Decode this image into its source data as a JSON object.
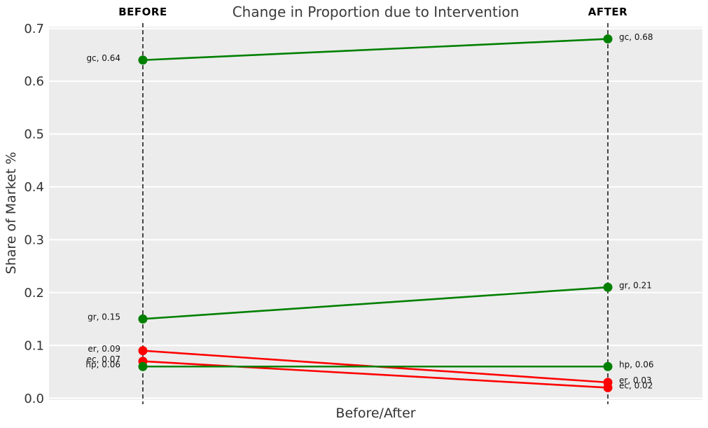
{
  "chart_data": {
    "type": "line",
    "subtype": "slope-chart",
    "title": "Change in Proportion due to Intervention",
    "xlabel": "Before/After",
    "ylabel": "Share of Market %",
    "column_headers": [
      "BEFORE",
      "AFTER"
    ],
    "x_categories": [
      "BEFORE",
      "AFTER"
    ],
    "ylim": [
      0.0,
      0.7
    ],
    "yticks": [
      0.0,
      0.1,
      0.2,
      0.3,
      0.4,
      0.5,
      0.6,
      0.7
    ],
    "ytick_labels": [
      "0.0",
      "0.1",
      "0.2",
      "0.3",
      "0.4",
      "0.5",
      "0.6",
      "0.7"
    ],
    "grid": true,
    "legend": false,
    "series": [
      {
        "name": "gc",
        "values": [
          0.64,
          0.68
        ],
        "color": "#008000",
        "label_before": "gc, 0.64",
        "label_after": "gc, 0.68"
      },
      {
        "name": "gr",
        "values": [
          0.15,
          0.21
        ],
        "color": "#008000",
        "label_before": "gr, 0.15",
        "label_after": "gr, 0.21"
      },
      {
        "name": "er",
        "values": [
          0.09,
          0.03
        ],
        "color": "#ff0000",
        "label_before": "er, 0.09",
        "label_after": "er, 0.03"
      },
      {
        "name": "ec",
        "values": [
          0.07,
          0.02
        ],
        "color": "#ff0000",
        "label_before": "ec, 0.07",
        "label_after": "ec, 0.02"
      },
      {
        "name": "hp",
        "values": [
          0.06,
          0.06
        ],
        "color": "#008000",
        "label_before": "hp, 0.06",
        "label_after": "hp, 0.06"
      }
    ],
    "colors": {
      "plot_background": "#ececec",
      "gridline": "#ffffff",
      "increase_or_stable_line": "#008000",
      "decrease_line": "#ff0000",
      "dashed_guide": "#000000",
      "title_text": "#3a3a3a",
      "axis_text": "#333333",
      "annotation_text": "#111111"
    }
  }
}
